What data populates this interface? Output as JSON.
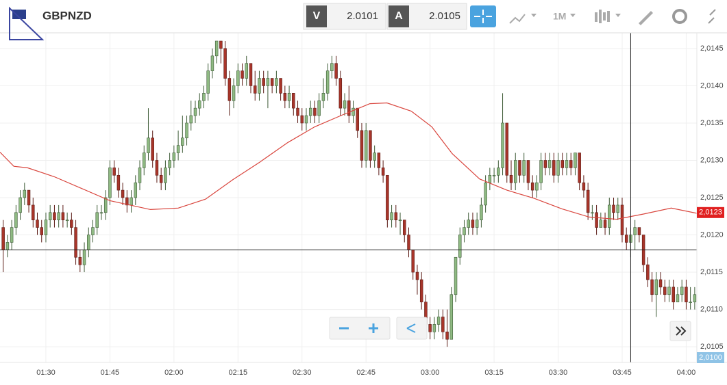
{
  "header": {
    "symbol": "GBPNZD",
    "sell_label": "V",
    "sell_price": 2.0101,
    "buy_label": "A",
    "buy_price": 2.0105,
    "timeframe": "1M"
  },
  "chart_data": {
    "type": "candlestick",
    "up_color": "#8fba83",
    "down_color": "#a8352a",
    "grid": true,
    "xlim": [
      -0.75,
      162.5
    ],
    "ylim": [
      2.01029,
      2.01471
    ],
    "xticks": [
      {
        "value": 10,
        "label": "01:30"
      },
      {
        "value": 25,
        "label": "01:45"
      },
      {
        "value": 40,
        "label": "02:00"
      },
      {
        "value": 55,
        "label": "02:15"
      },
      {
        "value": 70,
        "label": "02:30"
      },
      {
        "value": 85,
        "label": "02:45"
      },
      {
        "value": 100,
        "label": "03:00"
      },
      {
        "value": 115,
        "label": "03:15"
      },
      {
        "value": 130,
        "label": "03:30"
      },
      {
        "value": 145,
        "label": "03:45"
      },
      {
        "value": 160,
        "label": "04:00"
      }
    ],
    "yticks": [
      {
        "value": 2.0105,
        "label": "2,0105"
      },
      {
        "value": 2.011,
        "label": "2,0110"
      },
      {
        "value": 2.0115,
        "label": "2,0115"
      },
      {
        "value": 2.012,
        "label": "2,0120"
      },
      {
        "value": 2.0125,
        "label": "2,0125"
      },
      {
        "value": 2.013,
        "label": "2,0130"
      },
      {
        "value": 2.0135,
        "label": "2,0135"
      },
      {
        "value": 2.014,
        "label": "2,0140"
      },
      {
        "value": 2.0145,
        "label": "2,0145"
      }
    ],
    "candles": [
      [
        2.0121,
        2.0122,
        2.0115,
        2.0118
      ],
      [
        2.0118,
        2.012,
        2.0117,
        2.0119
      ],
      [
        2.0119,
        2.0122,
        2.0118,
        2.0121
      ],
      [
        2.0121,
        2.0124,
        2.012,
        2.0123
      ],
      [
        2.0123,
        2.0126,
        2.0122,
        2.0125
      ],
      [
        2.0125,
        2.0127,
        2.0124,
        2.0126
      ],
      [
        2.0126,
        2.0126,
        2.0123,
        2.0124
      ],
      [
        2.0124,
        2.0125,
        2.0121,
        2.0122
      ],
      [
        2.0122,
        2.0123,
        2.012,
        2.0121
      ],
      [
        2.0121,
        2.0122,
        2.0119,
        2.012
      ],
      [
        2.012,
        2.0123,
        2.0119,
        2.0122
      ],
      [
        2.0122,
        2.0124,
        2.0121,
        2.0123
      ],
      [
        2.0123,
        2.0124,
        2.0121,
        2.0122
      ],
      [
        2.0122,
        2.0124,
        2.0121,
        2.0123
      ],
      [
        2.0123,
        2.0124,
        2.0121,
        2.0122
      ],
      [
        2.0122,
        2.0123,
        2.0121,
        2.0122
      ],
      [
        2.0122,
        2.0123,
        2.012,
        2.0121
      ],
      [
        2.0121,
        2.0122,
        2.0116,
        2.0117
      ],
      [
        2.0117,
        2.0118,
        2.0115,
        2.0116
      ],
      [
        2.0116,
        2.0119,
        2.0115,
        2.0118
      ],
      [
        2.0118,
        2.0121,
        2.0117,
        2.012
      ],
      [
        2.012,
        2.0122,
        2.0119,
        2.0121
      ],
      [
        2.0121,
        2.0124,
        2.012,
        2.0123
      ],
      [
        2.0123,
        2.0124,
        2.0122,
        2.0123
      ],
      [
        2.0123,
        2.0126,
        2.0122,
        2.0125
      ],
      [
        2.0125,
        2.013,
        2.0124,
        2.0129
      ],
      [
        2.0129,
        2.013,
        2.0127,
        2.0128
      ],
      [
        2.0128,
        2.0129,
        2.0125,
        2.0126
      ],
      [
        2.0126,
        2.0127,
        2.0124,
        2.0125
      ],
      [
        2.0125,
        2.0126,
        2.0123,
        2.0124
      ],
      [
        2.0124,
        2.0126,
        2.0123,
        2.0125
      ],
      [
        2.0125,
        2.0128,
        2.0124,
        2.0127
      ],
      [
        2.0127,
        2.013,
        2.0126,
        2.0129
      ],
      [
        2.0129,
        2.0132,
        2.0128,
        2.0131
      ],
      [
        2.0131,
        2.0137,
        2.013,
        2.0133
      ],
      [
        2.0133,
        2.0134,
        2.0129,
        2.013
      ],
      [
        2.013,
        2.0131,
        2.0127,
        2.0128
      ],
      [
        2.0128,
        2.0129,
        2.0126,
        2.0127
      ],
      [
        2.0127,
        2.013,
        2.0126,
        2.0129
      ],
      [
        2.0129,
        2.0131,
        2.0128,
        2.013
      ],
      [
        2.013,
        2.0132,
        2.0129,
        2.0131
      ],
      [
        2.0131,
        2.0134,
        2.013,
        2.0132
      ],
      [
        2.0132,
        2.0136,
        2.0131,
        2.0133
      ],
      [
        2.0133,
        2.0136,
        2.0132,
        2.0135
      ],
      [
        2.0135,
        2.0138,
        2.0134,
        2.0136
      ],
      [
        2.0136,
        2.0138,
        2.0135,
        2.0137
      ],
      [
        2.0137,
        2.0139,
        2.0136,
        2.0138
      ],
      [
        2.0138,
        2.014,
        2.0137,
        2.0139
      ],
      [
        2.0139,
        2.0143,
        2.0138,
        2.0142
      ],
      [
        2.0142,
        2.0145,
        2.0141,
        2.0144
      ],
      [
        2.0144,
        2.0146,
        2.0143,
        2.0146
      ],
      [
        2.0146,
        2.0146,
        2.0143,
        2.0145
      ],
      [
        2.0145,
        2.0146,
        2.014,
        2.0141
      ],
      [
        2.0141,
        2.0142,
        2.0136,
        2.0138
      ],
      [
        2.0138,
        2.0141,
        2.0137,
        2.014
      ],
      [
        2.014,
        2.0143,
        2.0139,
        2.0142
      ],
      [
        2.0142,
        2.0143,
        2.014,
        2.0141
      ],
      [
        2.0141,
        2.0144,
        2.014,
        2.0143
      ],
      [
        2.0143,
        2.0143,
        2.0139,
        2.014
      ],
      [
        2.014,
        2.0142,
        2.0138,
        2.0139
      ],
      [
        2.0139,
        2.0142,
        2.0138,
        2.0141
      ],
      [
        2.0141,
        2.0142,
        2.0139,
        2.014
      ],
      [
        2.014,
        2.0142,
        2.0137,
        2.0141
      ],
      [
        2.0141,
        2.0141,
        2.0139,
        2.014
      ],
      [
        2.014,
        2.0142,
        2.0139,
        2.0141
      ],
      [
        2.0141,
        2.0141,
        2.0138,
        2.0139
      ],
      [
        2.0139,
        2.014,
        2.0137,
        2.0138
      ],
      [
        2.0138,
        2.014,
        2.0137,
        2.0139
      ],
      [
        2.0139,
        2.0139,
        2.0136,
        2.0137
      ],
      [
        2.0137,
        2.0138,
        2.0135,
        2.0136
      ],
      [
        2.0136,
        2.0137,
        2.0134,
        2.0135
      ],
      [
        2.0135,
        2.0137,
        2.0134,
        2.0136
      ],
      [
        2.0136,
        2.0138,
        2.0135,
        2.0137
      ],
      [
        2.0137,
        2.0138,
        2.0135,
        2.0136
      ],
      [
        2.0136,
        2.0139,
        2.0135,
        2.0138
      ],
      [
        2.0138,
        2.0141,
        2.0137,
        2.0139
      ],
      [
        2.0139,
        2.0143,
        2.0138,
        2.0142
      ],
      [
        2.0142,
        2.0144,
        2.0141,
        2.0143
      ],
      [
        2.0143,
        2.0144,
        2.014,
        2.0141
      ],
      [
        2.0141,
        2.0142,
        2.0136,
        2.0137
      ],
      [
        2.0137,
        2.0139,
        2.0136,
        2.0138
      ],
      [
        2.0138,
        2.014,
        2.0135,
        2.0136
      ],
      [
        2.0136,
        2.0138,
        2.0135,
        2.0137
      ],
      [
        2.0137,
        2.0137,
        2.0133,
        2.0134
      ],
      [
        2.0134,
        2.0135,
        2.0129,
        2.013
      ],
      [
        2.013,
        2.0135,
        2.0129,
        2.0134
      ],
      [
        2.0134,
        2.0134,
        2.0129,
        2.013
      ],
      [
        2.013,
        2.0132,
        2.0129,
        2.0131
      ],
      [
        2.0131,
        2.0131,
        2.0128,
        2.0129
      ],
      [
        2.0129,
        2.013,
        2.0127,
        2.0128
      ],
      [
        2.0128,
        2.0128,
        2.0121,
        2.0122
      ],
      [
        2.0122,
        2.0124,
        2.0121,
        2.0123
      ],
      [
        2.0123,
        2.0124,
        2.0121,
        2.0122
      ],
      [
        2.0122,
        2.0123,
        2.012,
        2.0122
      ],
      [
        2.0122,
        2.0122,
        2.0119,
        2.012
      ],
      [
        2.012,
        2.0121,
        2.0117,
        2.0118
      ],
      [
        2.0118,
        2.0118,
        2.0114,
        2.0115
      ],
      [
        2.0115,
        2.0116,
        2.0112,
        2.0114
      ],
      [
        2.0114,
        2.0115,
        2.011,
        2.0111
      ],
      [
        2.0111,
        2.0112,
        2.0107,
        2.0108
      ],
      [
        2.0108,
        2.0109,
        2.0106,
        2.0107
      ],
      [
        2.0107,
        2.0109,
        2.0106,
        2.0108
      ],
      [
        2.0108,
        2.011,
        2.0107,
        2.0109
      ],
      [
        2.0109,
        2.011,
        2.0106,
        2.0107
      ],
      [
        2.0107,
        2.011,
        2.0105,
        2.0106
      ],
      [
        2.0106,
        2.0113,
        2.0106,
        2.0112
      ],
      [
        2.0112,
        2.0117,
        2.0111,
        2.0117
      ],
      [
        2.0117,
        2.0121,
        2.0116,
        2.012
      ],
      [
        2.012,
        2.0122,
        2.0119,
        2.0121
      ],
      [
        2.0121,
        2.0123,
        2.012,
        2.0122
      ],
      [
        2.0122,
        2.0123,
        2.012,
        2.0121
      ],
      [
        2.0121,
        2.0123,
        2.012,
        2.0122
      ],
      [
        2.0122,
        2.0125,
        2.0121,
        2.0124
      ],
      [
        2.0124,
        2.0128,
        2.0123,
        2.0127
      ],
      [
        2.0127,
        2.0129,
        2.0126,
        2.0128
      ],
      [
        2.0128,
        2.0129,
        2.0127,
        2.0128
      ],
      [
        2.0128,
        2.013,
        2.0127,
        2.0129
      ],
      [
        2.0129,
        2.0139,
        2.0128,
        2.0135
      ],
      [
        2.0135,
        2.0135,
        2.0127,
        2.0128
      ],
      [
        2.0128,
        2.013,
        2.0126,
        2.0127
      ],
      [
        2.0127,
        2.0131,
        2.0126,
        2.013
      ],
      [
        2.013,
        2.013,
        2.0127,
        2.0128
      ],
      [
        2.0128,
        2.0131,
        2.0127,
        2.013
      ],
      [
        2.013,
        2.013,
        2.0126,
        2.0127
      ],
      [
        2.0127,
        2.0128,
        2.0125,
        2.0126
      ],
      [
        2.0126,
        2.0128,
        2.0125,
        2.0127
      ],
      [
        2.0127,
        2.0131,
        2.0126,
        2.013
      ],
      [
        2.013,
        2.0131,
        2.0128,
        2.0129
      ],
      [
        2.0129,
        2.0131,
        2.0128,
        2.013
      ],
      [
        2.013,
        2.0131,
        2.0127,
        2.0128
      ],
      [
        2.0128,
        2.0131,
        2.0127,
        2.013
      ],
      [
        2.013,
        2.0131,
        2.0128,
        2.0129
      ],
      [
        2.0129,
        2.0131,
        2.0128,
        2.013
      ],
      [
        2.013,
        2.0131,
        2.0128,
        2.0129
      ],
      [
        2.0129,
        2.0131,
        2.0128,
        2.0131
      ],
      [
        2.0131,
        2.0131,
        2.0126,
        2.0127
      ],
      [
        2.0127,
        2.0128,
        2.0125,
        2.0126
      ],
      [
        2.0126,
        2.0127,
        2.0122,
        2.0123
      ],
      [
        2.0123,
        2.0124,
        2.0122,
        2.0123
      ],
      [
        2.0123,
        2.0124,
        2.012,
        2.0121
      ],
      [
        2.0121,
        2.0123,
        2.0121,
        2.0122
      ],
      [
        2.0122,
        2.0123,
        2.012,
        2.0121
      ],
      [
        2.0121,
        2.0125,
        2.012,
        2.0124
      ],
      [
        2.0124,
        2.0125,
        2.0122,
        2.0123
      ],
      [
        2.0123,
        2.0125,
        2.0122,
        2.0124
      ],
      [
        2.0124,
        2.0125,
        2.0119,
        2.012
      ],
      [
        2.012,
        2.0121,
        2.0118,
        2.0119
      ],
      [
        2.0119,
        2.0121,
        2.0117,
        2.012
      ],
      [
        2.012,
        2.0122,
        2.0118,
        2.0121
      ],
      [
        2.0121,
        2.0121,
        2.0119,
        2.012
      ],
      [
        2.012,
        2.012,
        2.0115,
        2.0116
      ],
      [
        2.0116,
        2.0117,
        2.0113,
        2.0114
      ],
      [
        2.0114,
        2.0115,
        2.0111,
        2.0112
      ],
      [
        2.0112,
        2.0115,
        2.0109,
        2.0114
      ],
      [
        2.0114,
        2.0115,
        2.0112,
        2.0113
      ],
      [
        2.0113,
        2.0114,
        2.0111,
        2.0112
      ],
      [
        2.0112,
        2.0114,
        2.0111,
        2.0113
      ],
      [
        2.0113,
        2.0114,
        2.011,
        2.0111
      ],
      [
        2.0111,
        2.0113,
        2.0111,
        2.0112
      ],
      [
        2.0112,
        2.0114,
        2.0111,
        2.0113
      ],
      [
        2.0113,
        2.0114,
        2.011,
        2.0111
      ],
      [
        2.0111,
        2.0113,
        2.011,
        2.0111
      ],
      [
        2.0111,
        2.0113,
        2.011,
        2.0112
      ]
    ],
    "moving_average": {
      "color": "#d9453d",
      "x": [
        -0.75,
        2.5,
        5.7,
        12,
        18.5,
        25,
        34.5,
        41,
        47.4,
        53.8,
        60.2,
        66.7,
        73,
        79.5,
        85.9,
        89.9,
        95.6,
        100.4,
        105.2,
        111.6,
        118,
        124.4,
        130.9,
        137.3,
        143.7,
        150,
        156.5,
        162.5
      ],
      "values": [
        2.01311,
        2.01292,
        2.0129,
        2.01278,
        2.01262,
        2.01246,
        2.01234,
        2.01236,
        2.01248,
        2.01274,
        2.01298,
        2.01324,
        2.01345,
        2.01361,
        2.01376,
        2.01377,
        2.01366,
        2.01345,
        2.01309,
        2.01275,
        2.0126,
        2.01249,
        2.01235,
        2.01224,
        2.01221,
        2.01228,
        2.01236,
        2.01229
      ]
    },
    "last_price": {
      "value": 2.0123,
      "label": "2,0123"
    },
    "crosshair": {
      "x": 147,
      "y": 2.0118
    },
    "bottom_tag": "2,0100"
  }
}
